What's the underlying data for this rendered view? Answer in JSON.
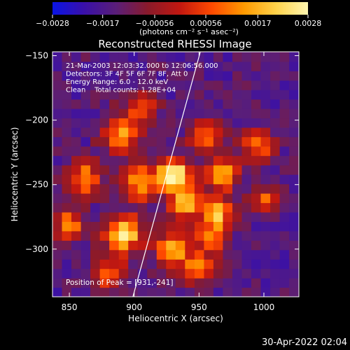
{
  "colors": {
    "background": "#000000",
    "text": "#ffffff",
    "colormap": [
      "#0a14e6",
      "#3a10a8",
      "#5a1e78",
      "#8a1a2a",
      "#c21810",
      "#ff4a00",
      "#ff9a00",
      "#ffd24a",
      "#fff6b0"
    ]
  },
  "colorbar": {
    "tick_labels": [
      "-0.0028",
      "-0.0017",
      "-0.00056",
      "0.00056",
      "0.0017",
      "0.0028"
    ],
    "units_label": "(photons cm⁻² s⁻¹ asec⁻²)",
    "range": [
      -0.0028,
      0.0028
    ]
  },
  "chart_data": {
    "type": "heatmap",
    "title": "Reconstructed RHESSI Image",
    "xlabel": "Heliocentric X (arcsec)",
    "ylabel": "Heliocentric Y (arcsec)",
    "xlim": [
      837,
      1027
    ],
    "ylim": [
      -337,
      -147
    ],
    "x_ticks": [
      850,
      900,
      950,
      1000
    ],
    "y_ticks": [
      -150,
      -200,
      -250,
      -300
    ],
    "x_tick_labels": [
      "850",
      "900",
      "950",
      "1000"
    ],
    "y_tick_labels": [
      "-150",
      "-200",
      "-250",
      "-300"
    ],
    "info_lines": [
      "21-Mar-2003 12:03:32.000 to 12:06:56.000",
      "Detectors: 3F 4F 5F 6F 7F 8F, Att 0",
      "Energy Range: 6.0 - 12.0 keV",
      "Clean    Total counts: 1.28E+04"
    ],
    "peak_label": "Position of Peak = [931,-241]",
    "peak": [
      931,
      -241
    ],
    "limb_line": [
      [
        899,
        -337
      ],
      [
        951,
        -147
      ]
    ],
    "blobs": [
      {
        "x": 931,
        "y": -242,
        "amp": 1.0,
        "sigma": 9
      },
      {
        "x": 892,
        "y": -288,
        "amp": 0.85,
        "sigma": 10
      },
      {
        "x": 905,
        "y": -248,
        "amp": 0.55,
        "sigma": 10
      },
      {
        "x": 850,
        "y": -282,
        "amp": 0.55,
        "sigma": 8
      },
      {
        "x": 862,
        "y": -245,
        "amp": 0.5,
        "sigma": 9
      },
      {
        "x": 890,
        "y": -212,
        "amp": 0.5,
        "sigma": 10
      },
      {
        "x": 955,
        "y": -212,
        "amp": 0.45,
        "sigma": 9
      },
      {
        "x": 965,
        "y": -272,
        "amp": 0.55,
        "sigma": 8
      },
      {
        "x": 968,
        "y": -242,
        "amp": 0.55,
        "sigma": 9
      },
      {
        "x": 940,
        "y": -265,
        "amp": 0.6,
        "sigma": 9
      },
      {
        "x": 930,
        "y": -300,
        "amp": 0.5,
        "sigma": 10
      },
      {
        "x": 995,
        "y": -220,
        "amp": 0.35,
        "sigma": 9
      },
      {
        "x": 1000,
        "y": -262,
        "amp": 0.25,
        "sigma": 8
      },
      {
        "x": 880,
        "y": -318,
        "amp": 0.35,
        "sigma": 9
      },
      {
        "x": 950,
        "y": -315,
        "amp": 0.3,
        "sigma": 9
      },
      {
        "x": 905,
        "y": -190,
        "amp": 0.25,
        "sigma": 9
      },
      {
        "x": 960,
        "y": -290,
        "amp": 0.4,
        "sigma": 8
      }
    ],
    "background_level": -0.55,
    "grid_cell": 7.3
  },
  "footer": {
    "date": "30-Apr-2022 02:04"
  }
}
